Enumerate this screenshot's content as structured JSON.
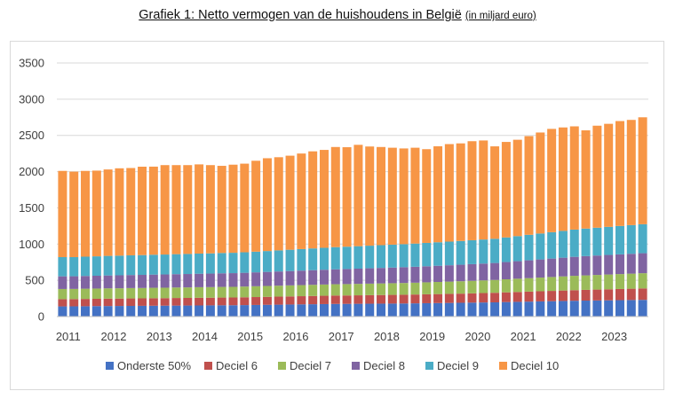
{
  "title": {
    "main": "Grafiek 1: Netto vermogen van de huishoudens in België",
    "unit": "(in miljard euro)"
  },
  "chart_data": {
    "type": "stacked-bar",
    "title": "Grafiek 1: Netto vermogen van de huishoudens in België (in miljard euro)",
    "ylim": [
      0,
      3500
    ],
    "yticks": [
      0,
      500,
      1000,
      1500,
      2000,
      2500,
      3000,
      3500
    ],
    "xtick_labels": [
      "2011",
      "2012",
      "2013",
      "2014",
      "2015",
      "2016",
      "2017",
      "2018",
      "2019",
      "2020",
      "2021",
      "2022",
      "2023"
    ],
    "grid": true,
    "legend_position": "bottom",
    "periods": 52,
    "period_note": "Quarterly observations, 2011Q1 to 2023Q4",
    "series": [
      {
        "name": "Onderste 50%",
        "color": "#4472C4",
        "values": [
          140,
          141,
          142,
          144,
          145,
          146,
          147,
          148,
          149,
          150,
          151,
          152,
          153,
          154,
          155,
          156,
          158,
          160,
          162,
          164,
          166,
          168,
          170,
          172,
          174,
          175,
          176,
          177,
          178,
          179,
          180,
          182,
          184,
          186,
          188,
          190,
          192,
          194,
          196,
          200,
          203,
          206,
          209,
          212,
          215,
          218,
          220,
          222,
          224,
          226,
          228,
          230
        ]
      },
      {
        "name": "Deciel 6",
        "color": "#C0504D",
        "values": [
          100,
          100,
          101,
          101,
          102,
          102,
          103,
          103,
          104,
          104,
          105,
          105,
          106,
          106,
          107,
          107,
          108,
          109,
          110,
          111,
          112,
          113,
          114,
          115,
          116,
          116,
          117,
          118,
          119,
          120,
          121,
          122,
          123,
          124,
          125,
          126,
          128,
          130,
          132,
          134,
          136,
          138,
          140,
          142,
          144,
          146,
          148,
          150,
          152,
          154,
          156,
          158
        ]
      },
      {
        "name": "Deciel 7",
        "color": "#9BBB59",
        "values": [
          140,
          140,
          141,
          141,
          142,
          142,
          143,
          143,
          144,
          144,
          145,
          145,
          146,
          146,
          147,
          147,
          148,
          149,
          150,
          151,
          152,
          153,
          154,
          155,
          156,
          157,
          158,
          159,
          160,
          161,
          162,
          163,
          165,
          167,
          169,
          171,
          173,
          175,
          177,
          180,
          183,
          186,
          189,
          192,
          195,
          198,
          200,
          202,
          204,
          206,
          208,
          210
        ]
      },
      {
        "name": "Deciel 8",
        "color": "#8064A2",
        "values": [
          175,
          175,
          176,
          177,
          178,
          179,
          180,
          181,
          182,
          183,
          184,
          185,
          186,
          187,
          188,
          189,
          190,
          192,
          194,
          196,
          198,
          200,
          202,
          204,
          206,
          208,
          210,
          212,
          214,
          216,
          218,
          220,
          222,
          224,
          226,
          228,
          230,
          232,
          234,
          238,
          242,
          246,
          250,
          254,
          258,
          262,
          266,
          268,
          270,
          272,
          274,
          276
        ]
      },
      {
        "name": "Deciel 9",
        "color": "#4BACC6",
        "values": [
          265,
          264,
          266,
          268,
          270,
          271,
          272,
          273,
          274,
          275,
          276,
          277,
          278,
          279,
          280,
          281,
          283,
          285,
          288,
          291,
          294,
          297,
          300,
          303,
          306,
          308,
          310,
          312,
          314,
          316,
          318,
          320,
          322,
          324,
          326,
          328,
          330,
          332,
          334,
          340,
          346,
          352,
          358,
          364,
          370,
          376,
          380,
          384,
          388,
          392,
          396,
          400
        ]
      },
      {
        "name": "Deciel 10",
        "color": "#F79646",
        "values": [
          1190,
          1180,
          1184,
          1183,
          1193,
          1206,
          1205,
          1220,
          1216,
          1234,
          1229,
          1226,
          1231,
          1218,
          1203,
          1216,
          1223,
          1255,
          1281,
          1286,
          1298,
          1319,
          1340,
          1351,
          1382,
          1373,
          1399,
          1369,
          1355,
          1338,
          1321,
          1323,
          1294,
          1325,
          1346,
          1347,
          1367,
          1367,
          1276,
          1318,
          1330,
          1362,
          1394,
          1426,
          1428,
          1425,
          1356,
          1408,
          1422,
          1448,
          1452,
          1476
        ]
      }
    ]
  }
}
